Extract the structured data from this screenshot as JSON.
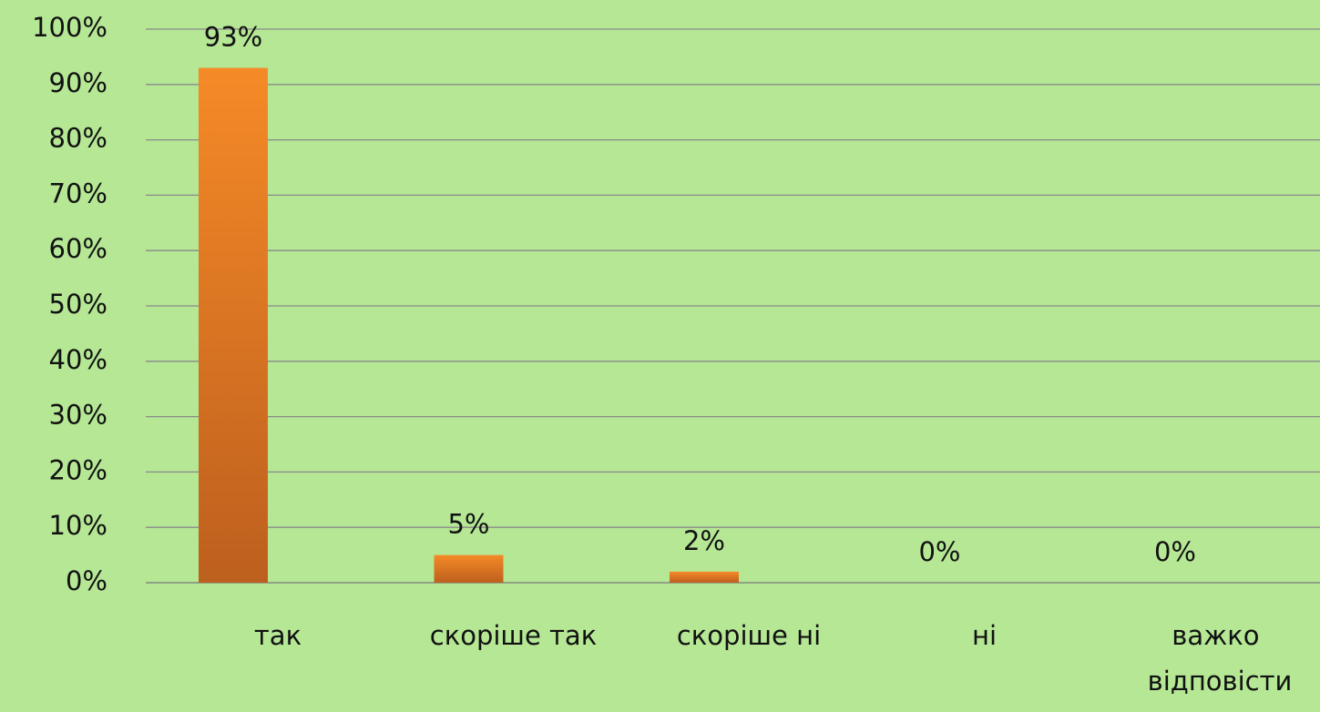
{
  "chart_data": {
    "type": "bar",
    "categories": [
      "так",
      "скоріше так",
      "скоріше ні",
      "ні",
      "важко відповісти"
    ],
    "values": [
      93,
      5,
      2,
      0,
      0
    ],
    "value_labels": [
      "93%",
      "5%",
      "2%",
      "0%",
      "0%"
    ],
    "color": "#e2772a",
    "ylim": [
      0,
      100
    ],
    "yticks": [
      {
        "value": 0,
        "label": "0%"
      },
      {
        "value": 10,
        "label": "10%"
      },
      {
        "value": 20,
        "label": "20%"
      },
      {
        "value": 30,
        "label": "30%"
      },
      {
        "value": 40,
        "label": "40%"
      },
      {
        "value": 50,
        "label": "50%"
      },
      {
        "value": 60,
        "label": "60%"
      },
      {
        "value": 70,
        "label": "70%"
      },
      {
        "value": 80,
        "label": "80%"
      },
      {
        "value": 90,
        "label": "90%"
      },
      {
        "value": 100,
        "label": "100%"
      }
    ],
    "grid": true
  }
}
